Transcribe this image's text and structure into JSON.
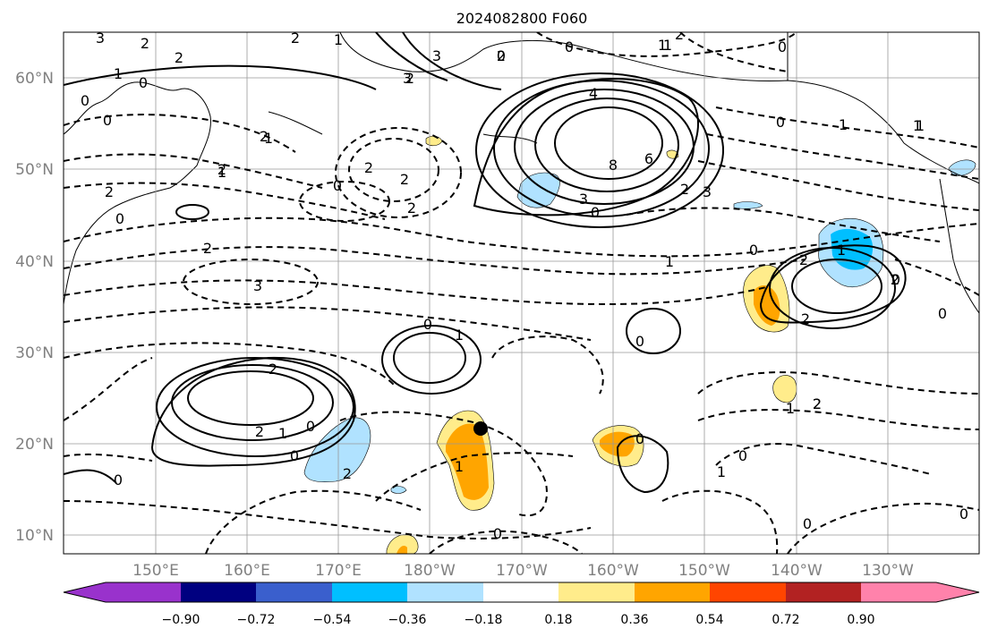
{
  "title": "2024082800 F060",
  "map": {
    "lat_labels": [
      "60°N",
      "50°N",
      "40°N",
      "30°N",
      "20°N",
      "10°N"
    ],
    "lon_labels": [
      "150°E",
      "160°E",
      "170°E",
      "180°W",
      "170°W",
      "160°W",
      "150°W",
      "140°W",
      "130°W"
    ],
    "grid": true,
    "marker": "black dot at approx 22°N, 175°W",
    "contour_line_colors": {
      "positive": "#000000",
      "negative_dashed": "#000000"
    }
  },
  "colorbar": {
    "tick_labels": [
      "−0.90",
      "−0.72",
      "−0.54",
      "−0.36",
      "−0.18",
      "0.18",
      "0.36",
      "0.54",
      "0.72",
      "0.90"
    ],
    "colors": [
      "#9932CC",
      "#000080",
      "#3A5FCD",
      "#00BFFF",
      "#B0E2FF",
      "#FFFFFF",
      "#FFEC8B",
      "#FFA500",
      "#FF4500",
      "#B22222",
      "#FF82AB"
    ],
    "extend": "both"
  },
  "contour_labels": [
    {
      "text": "3"
    },
    {
      "text": "2"
    },
    {
      "text": "2"
    },
    {
      "text": "1"
    },
    {
      "text": "0"
    },
    {
      "text": "0"
    },
    {
      "text": "2"
    },
    {
      "text": "1"
    },
    {
      "text": "0"
    },
    {
      "text": "1"
    },
    {
      "text": "2"
    },
    {
      "text": "0"
    },
    {
      "text": "2"
    },
    {
      "text": "2"
    },
    {
      "text": "3"
    },
    {
      "text": "3"
    },
    {
      "text": "2"
    },
    {
      "text": "0"
    },
    {
      "text": "1"
    },
    {
      "text": "0"
    },
    {
      "text": "0"
    },
    {
      "text": "2"
    },
    {
      "text": "1"
    },
    {
      "text": "2"
    },
    {
      "text": "4"
    },
    {
      "text": "8"
    },
    {
      "text": "6"
    },
    {
      "text": "3"
    },
    {
      "text": "0"
    },
    {
      "text": "2"
    },
    {
      "text": "2"
    },
    {
      "text": "0"
    },
    {
      "text": "1"
    },
    {
      "text": "1"
    },
    {
      "text": "0"
    },
    {
      "text": "0"
    },
    {
      "text": "2"
    },
    {
      "text": "3"
    },
    {
      "text": "1"
    },
    {
      "text": "2"
    },
    {
      "text": "2"
    },
    {
      "text": "2"
    },
    {
      "text": "0"
    },
    {
      "text": "1"
    },
    {
      "text": "1"
    },
    {
      "text": "0"
    },
    {
      "text": "0"
    },
    {
      "text": "0"
    },
    {
      "text": "1"
    },
    {
      "text": "0"
    },
    {
      "text": "2"
    },
    {
      "text": "1"
    },
    {
      "text": "2"
    },
    {
      "text": "0"
    },
    {
      "text": "1"
    },
    {
      "text": "0"
    },
    {
      "text": "0"
    },
    {
      "text": "0"
    },
    {
      "text": "2"
    },
    {
      "text": "1"
    },
    {
      "text": "0"
    },
    {
      "text": "0"
    },
    {
      "text": "1"
    },
    {
      "text": "0"
    },
    {
      "text": "2"
    },
    {
      "text": "1"
    },
    {
      "text": "3"
    },
    {
      "text": "2"
    },
    {
      "text": "2"
    },
    {
      "text": "1"
    },
    {
      "text": "2"
    }
  ]
}
